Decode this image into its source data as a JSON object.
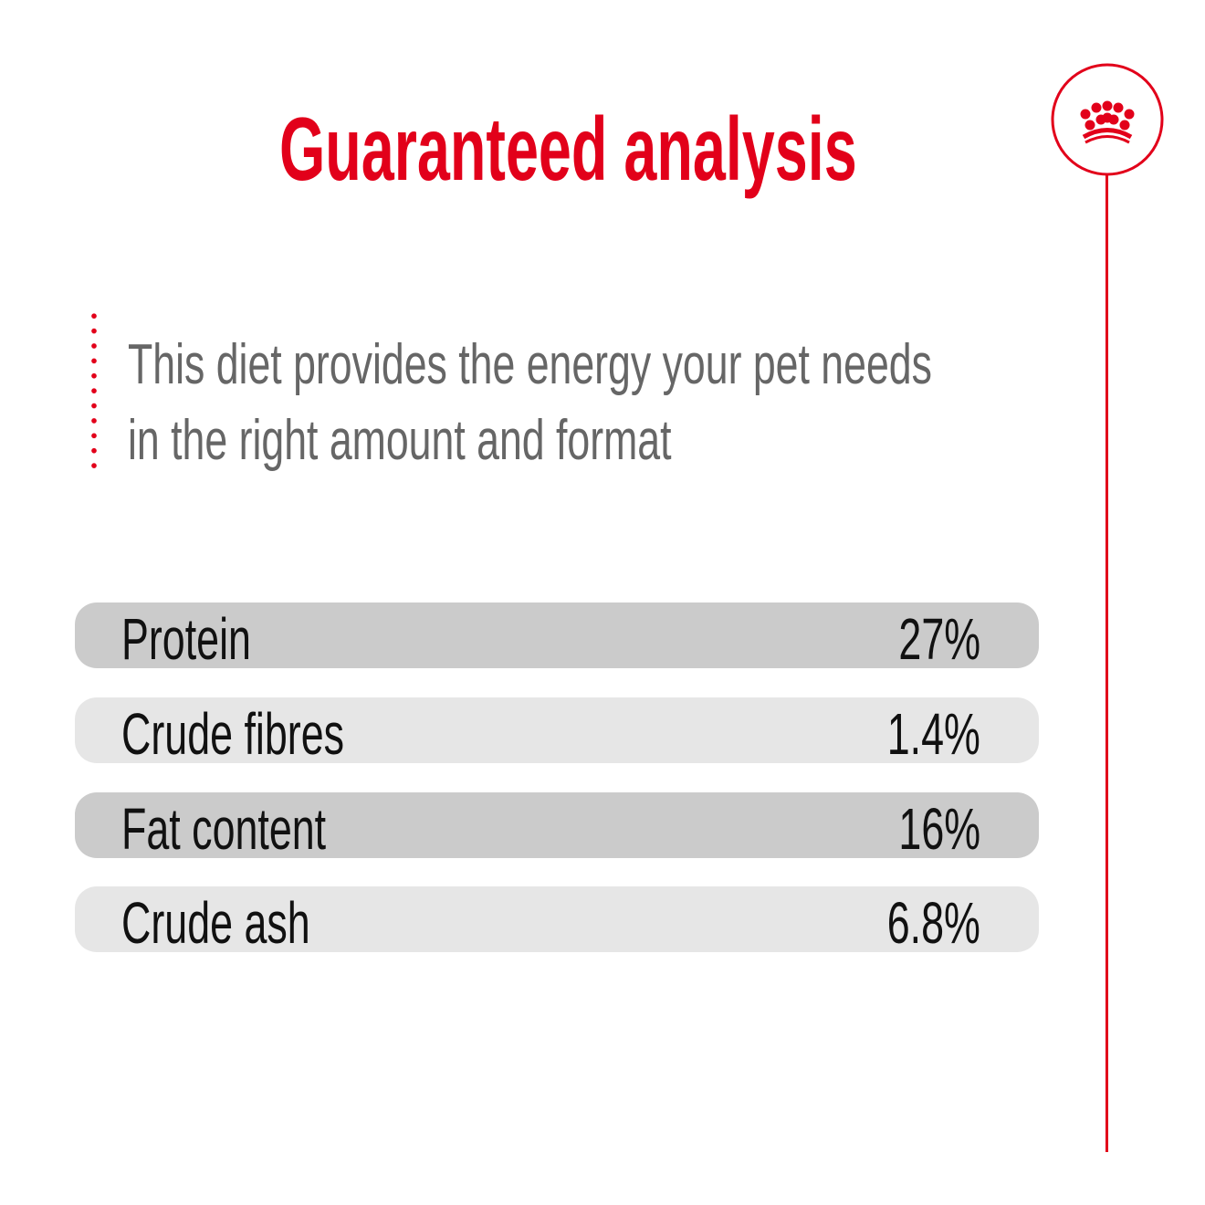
{
  "header": {
    "title": "Guaranteed analysis"
  },
  "description": {
    "lines": [
      "This diet provides the energy your pet needs",
      "in the right amount and format"
    ]
  },
  "analysis": [
    {
      "label": "Protein",
      "value": "27%"
    },
    {
      "label": "Crude fibres",
      "value": "1.4%"
    },
    {
      "label": "Fat content",
      "value": "16%"
    },
    {
      "label": "Crude ash",
      "value": "6.8%"
    }
  ],
  "brand": {
    "logo": "crown-icon",
    "accent_color": "#e2001a"
  }
}
